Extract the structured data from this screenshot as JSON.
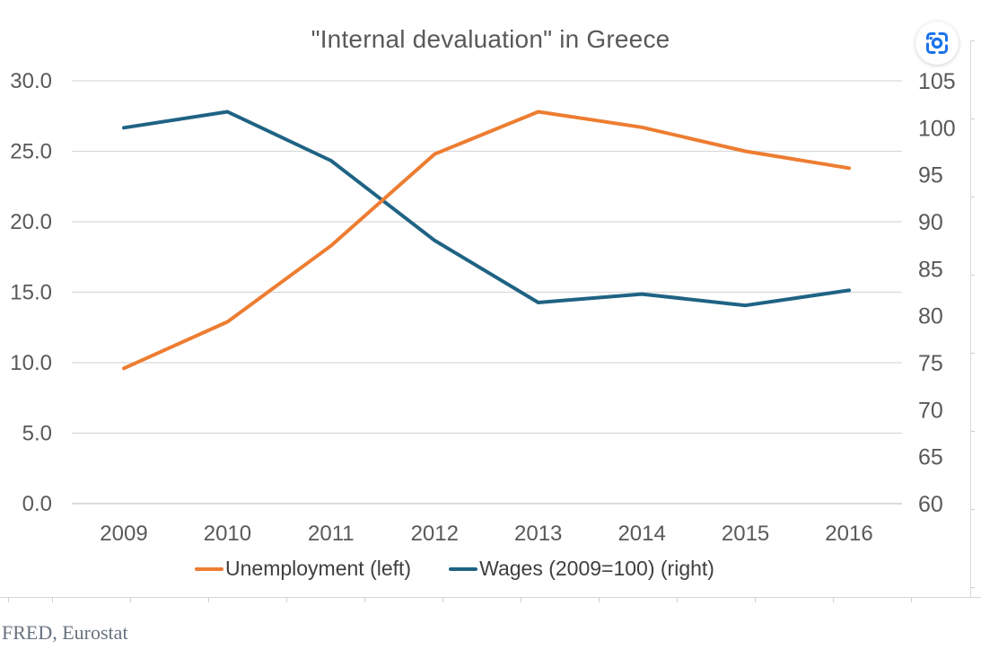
{
  "source_caption": "FRED, Eurostat",
  "ui": {
    "background_color": "#ffffff",
    "lens_button_color": "#1a73e8",
    "icons": {
      "image_search": "google-lens-icon"
    }
  },
  "chart_data": {
    "type": "line",
    "title": "\"Internal devaluation\" in Greece",
    "title_color": "#595959",
    "categories": [
      "2009",
      "2010",
      "2011",
      "2012",
      "2013",
      "2014",
      "2015",
      "2016"
    ],
    "series": [
      {
        "name": "Unemployment (left)",
        "axis": "left",
        "color": "#ED7D31",
        "values": [
          9.6,
          12.9,
          18.3,
          24.8,
          27.8,
          26.7,
          25.0,
          23.8
        ]
      },
      {
        "name": "Wages (2009=100) (right)",
        "axis": "right",
        "color": "#1F6384",
        "values": [
          100.0,
          101.7,
          96.5,
          88.0,
          81.4,
          82.3,
          81.1,
          82.7
        ]
      }
    ],
    "left_axis": {
      "min": 0,
      "max": 30,
      "ticks": [
        "30.0",
        "25.0",
        "20.0",
        "15.0",
        "10.0",
        "5.0",
        "0.0"
      ]
    },
    "right_axis": {
      "min": 60,
      "max": 105,
      "ticks": [
        "105",
        "100",
        "95",
        "90",
        "85",
        "80",
        "75",
        "70",
        "65",
        "60"
      ]
    },
    "grid": true,
    "gridline_color": "#d9d9d9",
    "baseline_color": "#c4c4c4",
    "axis_text_color": "#595959",
    "legend_position": "bottom"
  }
}
